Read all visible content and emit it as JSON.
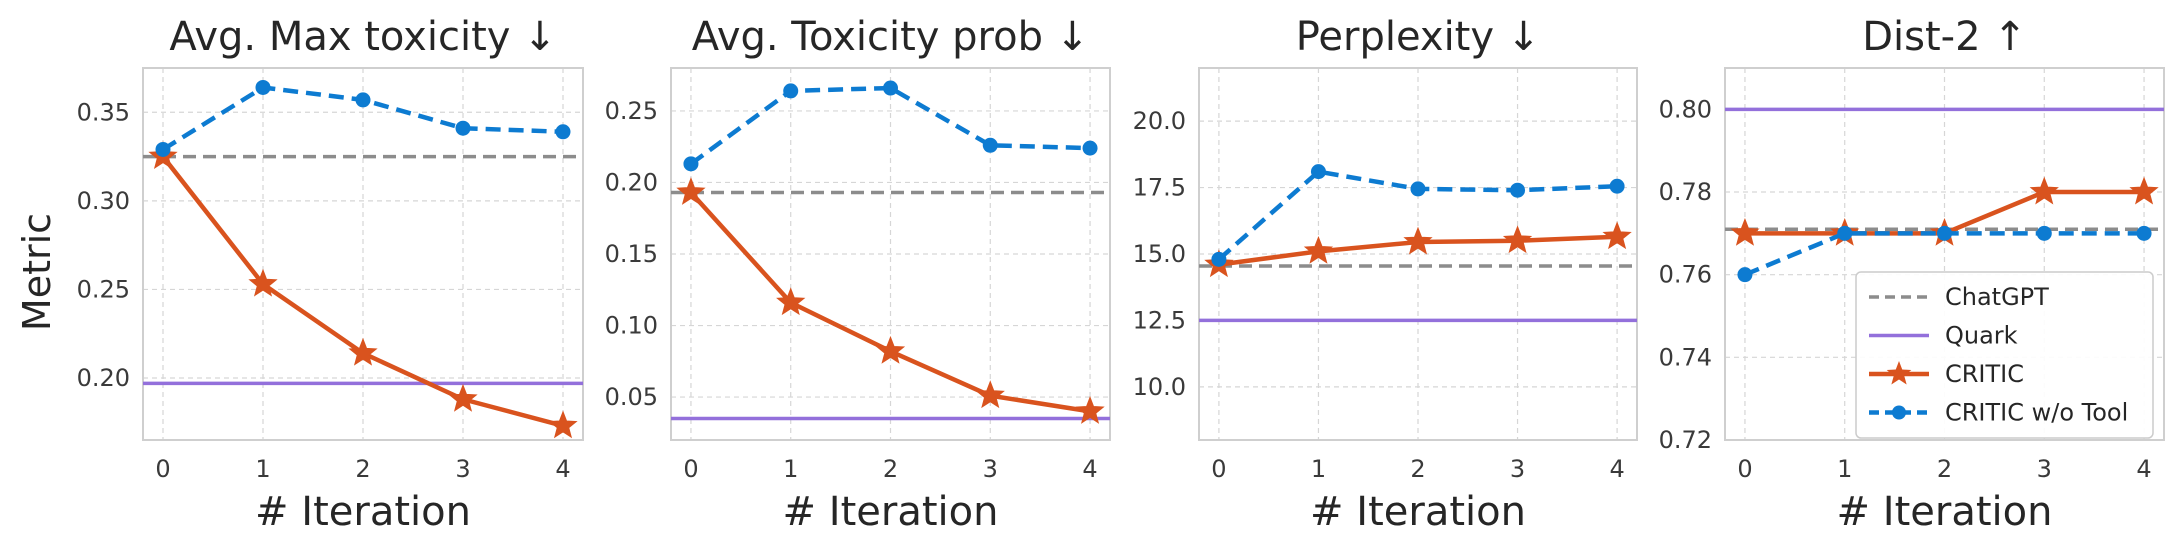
{
  "figure": {
    "ylabel": "Metric"
  },
  "colors": {
    "chatgpt": "#8c8c8c",
    "quark": "#9370db",
    "critic": "#d9531e",
    "critic_wo_tool": "#0d7bd1",
    "grid": "#d6d6d6",
    "frame": "#cfcfcf"
  },
  "legend": {
    "placement": "lower-right of last panel",
    "entries": [
      "ChatGPT",
      "Quark",
      "CRITIC",
      "CRITIC w/o Tool"
    ]
  },
  "chart_data": [
    {
      "type": "line",
      "title": "Avg. Max toxicity ↓",
      "xlabel": "# Iteration",
      "ylabel": "Metric",
      "x": [
        0,
        1,
        2,
        3,
        4
      ],
      "ylim": [
        0.165,
        0.375
      ],
      "yticks": [
        0.2,
        0.25,
        0.3,
        0.35
      ],
      "ytick_labels": [
        "0.20",
        "0.25",
        "0.30",
        "0.35"
      ],
      "grid": true,
      "series": [
        {
          "name": "ChatGPT",
          "style": "dashed-hline",
          "values": [
            0.325,
            0.325,
            0.325,
            0.325,
            0.325
          ]
        },
        {
          "name": "Quark",
          "style": "solid-hline",
          "values": [
            0.197,
            0.197,
            0.197,
            0.197,
            0.197
          ]
        },
        {
          "name": "CRITIC",
          "style": "solid-star",
          "values": [
            0.325,
            0.253,
            0.214,
            0.188,
            0.173
          ]
        },
        {
          "name": "CRITIC w/o Tool",
          "style": "dashed-dot",
          "values": [
            0.329,
            0.364,
            0.357,
            0.341,
            0.339
          ]
        }
      ]
    },
    {
      "type": "line",
      "title": "Avg. Toxicity prob ↓",
      "xlabel": "# Iteration",
      "x": [
        0,
        1,
        2,
        3,
        4
      ],
      "ylim": [
        0.02,
        0.28
      ],
      "yticks": [
        0.05,
        0.1,
        0.15,
        0.2,
        0.25
      ],
      "ytick_labels": [
        "0.05",
        "0.10",
        "0.15",
        "0.20",
        "0.25"
      ],
      "grid": true,
      "series": [
        {
          "name": "ChatGPT",
          "style": "dashed-hline",
          "values": [
            0.193,
            0.193,
            0.193,
            0.193,
            0.193
          ]
        },
        {
          "name": "Quark",
          "style": "solid-hline",
          "values": [
            0.035,
            0.035,
            0.035,
            0.035,
            0.035
          ]
        },
        {
          "name": "CRITIC",
          "style": "solid-star",
          "values": [
            0.193,
            0.116,
            0.082,
            0.051,
            0.04
          ]
        },
        {
          "name": "CRITIC w/o Tool",
          "style": "dashed-dot",
          "values": [
            0.213,
            0.264,
            0.266,
            0.226,
            0.224
          ]
        }
      ]
    },
    {
      "type": "line",
      "title": "Perplexity ↓",
      "xlabel": "# Iteration",
      "x": [
        0,
        1,
        2,
        3,
        4
      ],
      "ylim": [
        8.0,
        22.0
      ],
      "yticks": [
        10.0,
        12.5,
        15.0,
        17.5,
        20.0
      ],
      "ytick_labels": [
        "10.0",
        "12.5",
        "15.0",
        "17.5",
        "20.0"
      ],
      "grid": true,
      "series": [
        {
          "name": "ChatGPT",
          "style": "dashed-hline",
          "values": [
            14.55,
            14.55,
            14.55,
            14.55,
            14.55
          ]
        },
        {
          "name": "Quark",
          "style": "solid-hline",
          "values": [
            12.5,
            12.5,
            12.5,
            12.5,
            12.5
          ]
        },
        {
          "name": "CRITIC",
          "style": "solid-star",
          "values": [
            14.6,
            15.1,
            15.45,
            15.5,
            15.65
          ]
        },
        {
          "name": "CRITIC w/o Tool",
          "style": "dashed-dot",
          "values": [
            14.8,
            18.1,
            17.45,
            17.4,
            17.55
          ]
        }
      ]
    },
    {
      "type": "line",
      "title": "Dist-2 ↑",
      "xlabel": "# Iteration",
      "x": [
        0,
        1,
        2,
        3,
        4
      ],
      "ylim": [
        0.72,
        0.81
      ],
      "yticks": [
        0.72,
        0.74,
        0.76,
        0.78,
        0.8
      ],
      "ytick_labels": [
        "0.72",
        "0.74",
        "0.76",
        "0.78",
        "0.80"
      ],
      "grid": true,
      "series": [
        {
          "name": "ChatGPT",
          "style": "dashed-hline",
          "values": [
            0.771,
            0.771,
            0.771,
            0.771,
            0.771
          ]
        },
        {
          "name": "Quark",
          "style": "solid-hline",
          "values": [
            0.8,
            0.8,
            0.8,
            0.8,
            0.8
          ]
        },
        {
          "name": "CRITIC",
          "style": "solid-star",
          "values": [
            0.77,
            0.77,
            0.77,
            0.78,
            0.78
          ]
        },
        {
          "name": "CRITIC w/o Tool",
          "style": "dashed-dot",
          "values": [
            0.76,
            0.77,
            0.77,
            0.77,
            0.77
          ]
        }
      ]
    }
  ]
}
